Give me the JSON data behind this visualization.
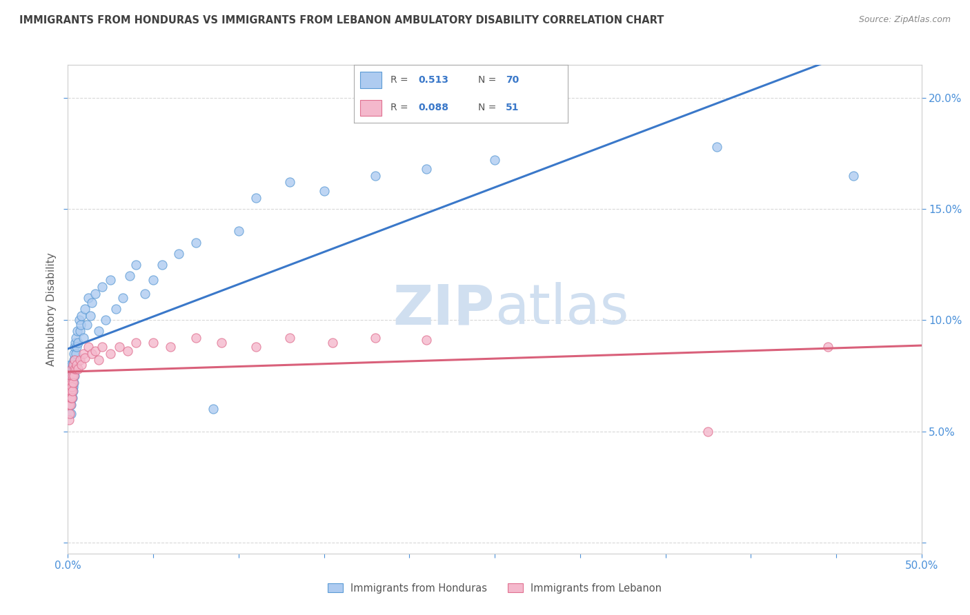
{
  "title": "IMMIGRANTS FROM HONDURAS VS IMMIGRANTS FROM LEBANON AMBULATORY DISABILITY CORRELATION CHART",
  "source": "Source: ZipAtlas.com",
  "ylabel": "Ambulatory Disability",
  "xlim": [
    0.0,
    0.5
  ],
  "ylim": [
    -0.005,
    0.215
  ],
  "xticks": [
    0.0,
    0.05,
    0.1,
    0.15,
    0.2,
    0.25,
    0.3,
    0.35,
    0.4,
    0.45,
    0.5
  ],
  "yticks": [
    0.0,
    0.05,
    0.1,
    0.15,
    0.2
  ],
  "honduras_fill": "#aecbf0",
  "honduras_edge": "#5b9bd5",
  "lebanon_fill": "#f4b8cc",
  "lebanon_edge": "#e07090",
  "honduras_line_color": "#3a78c9",
  "lebanon_line_color": "#d9607a",
  "watermark_color": "#d0dff0",
  "watermark_zip_color": "#d0dff0",
  "background_color": "#ffffff",
  "grid_color": "#d8d8d8",
  "title_color": "#404040",
  "axis_label_color": "#606060",
  "tick_color": "#4a90d9",
  "r_value_color": "#3a78c9",
  "legend_label_honduras": "Immigrants from Honduras",
  "legend_label_lebanon": "Immigrants from Lebanon",
  "R_honduras": 0.513,
  "N_honduras": 70,
  "R_lebanon": 0.088,
  "N_lebanon": 51,
  "honduras_scatter_x": [
    0.0008,
    0.001,
    0.0012,
    0.0014,
    0.0015,
    0.0016,
    0.0018,
    0.0019,
    0.002,
    0.0021,
    0.0022,
    0.0023,
    0.0024,
    0.0025,
    0.0026,
    0.0027,
    0.0028,
    0.0029,
    0.003,
    0.0031,
    0.0032,
    0.0033,
    0.0034,
    0.0035,
    0.0036,
    0.0037,
    0.0038,
    0.0039,
    0.004,
    0.0042,
    0.0044,
    0.0046,
    0.0048,
    0.005,
    0.0055,
    0.006,
    0.0065,
    0.007,
    0.0075,
    0.008,
    0.009,
    0.01,
    0.011,
    0.012,
    0.013,
    0.014,
    0.016,
    0.018,
    0.02,
    0.022,
    0.025,
    0.028,
    0.032,
    0.036,
    0.04,
    0.045,
    0.05,
    0.055,
    0.065,
    0.075,
    0.085,
    0.1,
    0.11,
    0.13,
    0.15,
    0.18,
    0.21,
    0.25,
    0.38,
    0.46
  ],
  "honduras_scatter_y": [
    0.075,
    0.072,
    0.068,
    0.08,
    0.065,
    0.078,
    0.07,
    0.062,
    0.058,
    0.065,
    0.08,
    0.075,
    0.07,
    0.068,
    0.072,
    0.078,
    0.065,
    0.08,
    0.07,
    0.075,
    0.068,
    0.082,
    0.078,
    0.072,
    0.085,
    0.08,
    0.088,
    0.075,
    0.082,
    0.09,
    0.078,
    0.085,
    0.092,
    0.088,
    0.095,
    0.09,
    0.1,
    0.095,
    0.098,
    0.102,
    0.092,
    0.105,
    0.098,
    0.11,
    0.102,
    0.108,
    0.112,
    0.095,
    0.115,
    0.1,
    0.118,
    0.105,
    0.11,
    0.12,
    0.125,
    0.112,
    0.118,
    0.125,
    0.13,
    0.135,
    0.06,
    0.14,
    0.155,
    0.162,
    0.158,
    0.165,
    0.168,
    0.172,
    0.178,
    0.165
  ],
  "lebanon_scatter_x": [
    0.0006,
    0.0008,
    0.001,
    0.0011,
    0.0012,
    0.0013,
    0.0014,
    0.0015,
    0.0016,
    0.0017,
    0.0018,
    0.0019,
    0.002,
    0.0021,
    0.0022,
    0.0023,
    0.0024,
    0.0025,
    0.0028,
    0.003,
    0.0032,
    0.0035,
    0.0038,
    0.004,
    0.0045,
    0.005,
    0.006,
    0.007,
    0.008,
    0.009,
    0.01,
    0.012,
    0.014,
    0.016,
    0.018,
    0.02,
    0.025,
    0.03,
    0.035,
    0.04,
    0.05,
    0.06,
    0.075,
    0.09,
    0.11,
    0.13,
    0.155,
    0.18,
    0.21,
    0.375,
    0.445
  ],
  "lebanon_scatter_y": [
    0.062,
    0.055,
    0.068,
    0.065,
    0.058,
    0.07,
    0.062,
    0.068,
    0.072,
    0.065,
    0.075,
    0.07,
    0.068,
    0.072,
    0.065,
    0.078,
    0.07,
    0.075,
    0.068,
    0.072,
    0.08,
    0.075,
    0.078,
    0.082,
    0.078,
    0.08,
    0.078,
    0.082,
    0.08,
    0.085,
    0.083,
    0.088,
    0.085,
    0.086,
    0.082,
    0.088,
    0.085,
    0.088,
    0.086,
    0.09,
    0.09,
    0.088,
    0.092,
    0.09,
    0.088,
    0.092,
    0.09,
    0.092,
    0.091,
    0.05,
    0.088
  ]
}
